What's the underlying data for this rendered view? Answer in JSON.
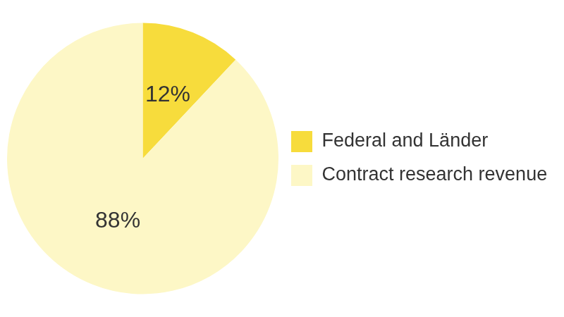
{
  "chart_data": {
    "type": "pie",
    "categories": [
      "Federal and Länder",
      "Contract research revenue"
    ],
    "values": [
      12,
      88
    ],
    "value_labels": [
      "12%",
      "88%"
    ],
    "colors": [
      "#f7dc3c",
      "#fdf7c6"
    ],
    "data_labels": true,
    "legend": "right"
  }
}
